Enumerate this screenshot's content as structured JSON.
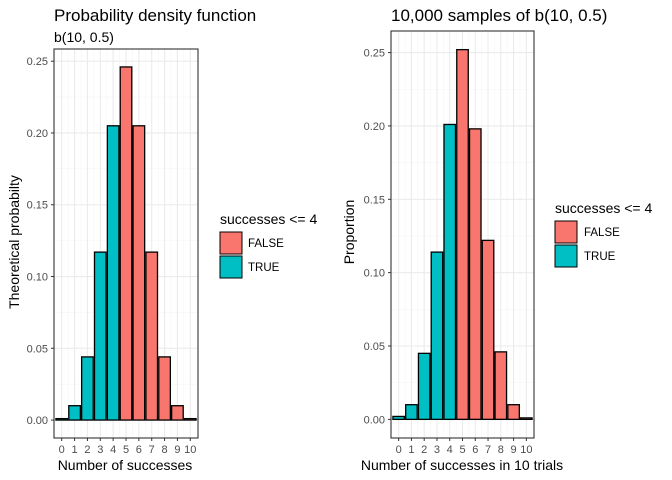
{
  "chart_data": [
    {
      "type": "bar",
      "title": "Probability density function",
      "subtitle": "b(10, 0.5)",
      "xlabel": "Number of successes",
      "ylabel": "Theoretical probabilty",
      "categories": [
        "0",
        "1",
        "2",
        "3",
        "4",
        "5",
        "6",
        "7",
        "8",
        "9",
        "10"
      ],
      "values": [
        0.001,
        0.01,
        0.044,
        0.117,
        0.205,
        0.246,
        0.205,
        0.117,
        0.044,
        0.01,
        0.001
      ],
      "fill_group": [
        "TRUE",
        "TRUE",
        "TRUE",
        "TRUE",
        "TRUE",
        "FALSE",
        "FALSE",
        "FALSE",
        "FALSE",
        "FALSE",
        "FALSE"
      ],
      "ylim": [
        -0.0125,
        0.2585
      ],
      "yticks": [
        "0.00",
        "0.05",
        "0.10",
        "0.15",
        "0.20",
        "0.25"
      ],
      "grid": true,
      "legend": {
        "title": "successes <= 4",
        "position": "right",
        "entries": [
          {
            "label": "FALSE",
            "color": "#F8766D"
          },
          {
            "label": "TRUE",
            "color": "#00BFC4"
          }
        ]
      }
    },
    {
      "type": "bar",
      "title": "10,000 samples of b(10, 0.5)",
      "subtitle": "",
      "xlabel": "Number of successes in 10 trials",
      "ylabel": "Proportion",
      "categories": [
        "0",
        "1",
        "2",
        "3",
        "4",
        "5",
        "6",
        "7",
        "8",
        "9",
        "10"
      ],
      "values": [
        0.002,
        0.01,
        0.045,
        0.114,
        0.201,
        0.252,
        0.198,
        0.122,
        0.046,
        0.01,
        0.001
      ],
      "fill_group": [
        "TRUE",
        "TRUE",
        "TRUE",
        "TRUE",
        "TRUE",
        "FALSE",
        "FALSE",
        "FALSE",
        "FALSE",
        "FALSE",
        "FALSE"
      ],
      "ylim": [
        -0.0127,
        0.2647
      ],
      "yticks": [
        "0.00",
        "0.05",
        "0.10",
        "0.15",
        "0.20",
        "0.25"
      ],
      "grid": true,
      "legend": {
        "title": "successes <= 4",
        "position": "right",
        "entries": [
          {
            "label": "FALSE",
            "color": "#F8766D"
          },
          {
            "label": "TRUE",
            "color": "#00BFC4"
          }
        ]
      }
    }
  ],
  "colors": {
    "false_fill": "#F8766D",
    "true_fill": "#00BFC4",
    "bar_outline": "#000000",
    "grid_major": "#EBEBEB",
    "grid_minor": "#F5F5F5",
    "panel_border": "#333333"
  }
}
